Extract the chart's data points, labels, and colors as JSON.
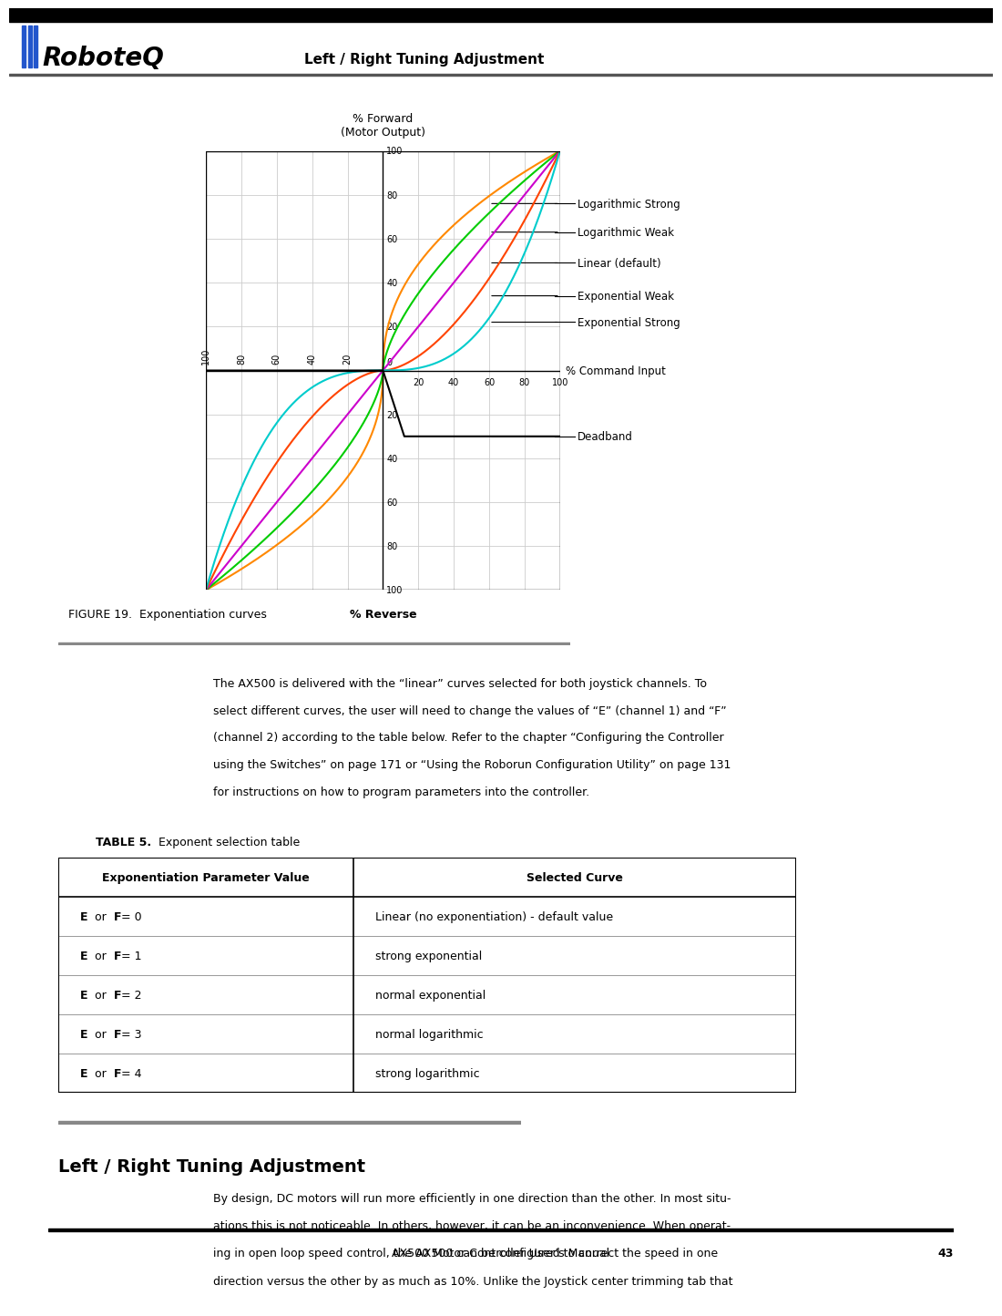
{
  "page_title": "Left / Right Tuning Adjustment",
  "figure_caption": "FIGURE 19.  Exponentiation curves",
  "chart": {
    "xlabel_top": "% Forward\n(Motor Output)",
    "xlabel_bottom": "% Reverse",
    "ylabel_right": "% Command Input",
    "ylim": [
      -100,
      100
    ],
    "xlim": [
      -100,
      100
    ],
    "yticks": [
      -100,
      -80,
      -60,
      -40,
      -20,
      0,
      20,
      40,
      60,
      80,
      100
    ],
    "xticks": [
      -100,
      -80,
      -60,
      -40,
      -20,
      0,
      20,
      40,
      60,
      80,
      100
    ],
    "curves": {
      "log_strong": {
        "color": "#FF8800",
        "label": "Logarithmic Strong"
      },
      "log_weak": {
        "color": "#00CC00",
        "label": "Logarithmic Weak"
      },
      "linear": {
        "color": "#CC00CC",
        "label": "Linear (default)"
      },
      "exp_weak": {
        "color": "#FF4400",
        "label": "Exponential Weak"
      },
      "exp_strong": {
        "color": "#00CCCC",
        "label": "Exponential Strong"
      },
      "deadband": {
        "color": "#000000",
        "label": "Deadband"
      }
    }
  },
  "table": {
    "title_bold": "TABLE 5.",
    "title_normal": " Exponent selection table",
    "headers": [
      "Exponentiation Parameter Value",
      "Selected Curve"
    ],
    "rows": [
      [
        "E or F = 0",
        "Linear (no exponentiation) - default value"
      ],
      [
        "E or F = 1",
        "strong exponential"
      ],
      [
        "E or F = 2",
        "normal exponential"
      ],
      [
        "E or F = 3",
        "normal logarithmic"
      ],
      [
        "E or F = 4",
        "strong logarithmic"
      ]
    ],
    "bold_parts": [
      "E",
      "F"
    ]
  },
  "body_text_lines": [
    "The AX500 is delivered with the “linear” curves selected for both joystick channels. To",
    "select different curves, the user will need to change the values of “E” (channel 1) and “F”",
    "(channel 2) according to the table below. Refer to the chapter “Configuring the Controller",
    "using the Switches” on page 171 or “Using the Roborun Configuration Utility” on page 131",
    "for instructions on how to program parameters into the controller."
  ],
  "section_title": "Left / Right Tuning Adjustment",
  "section_body_lines": [
    "By design, DC motors will run more efficiently in one direction than the other. In most situ-",
    "ations this is not noticeable. In others, however, it can be an inconvenience. When operat-",
    "ing in open loop speed control, the AX500 can be configured to correct the speed in one",
    "direction versus the other by as much as 10%. Unlike the Joystick center trimming tab that"
  ],
  "footer_text": "AX500 Motor Controller User’s Manual",
  "page_number": "43",
  "logo_text": "RoboteQ",
  "header_color": "#2255cc",
  "background": "#ffffff"
}
